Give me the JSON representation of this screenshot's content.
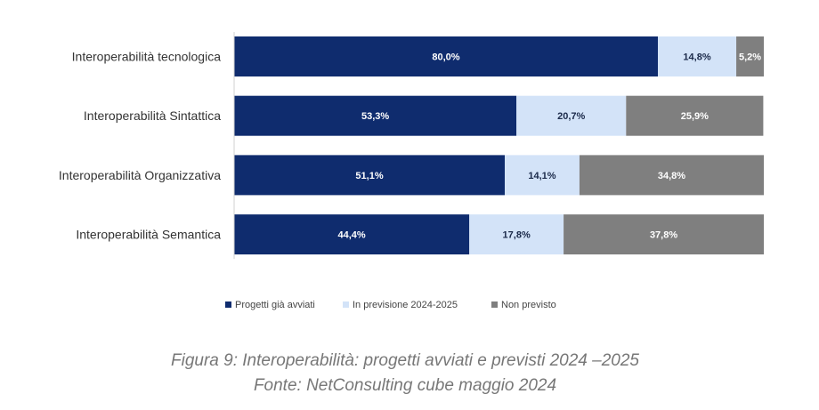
{
  "chart_data": {
    "type": "bar",
    "orientation": "horizontal",
    "stacked": true,
    "categories": [
      "Interoperabilità tecnologica",
      "Interoperabilità Sintattica",
      "Interoperabilità Organizzativa",
      "Interoperabilità Semantica"
    ],
    "series": [
      {
        "name": "Progetti già avviati",
        "color": "#0f2c6e",
        "label_color": "#ffffff",
        "values": [
          80.0,
          53.3,
          51.1,
          44.4
        ],
        "labels": [
          "80,0%",
          "53,3%",
          "51,1%",
          "44,4%"
        ]
      },
      {
        "name": "In previsione 2024-2025",
        "color": "#d3e3f8",
        "label_color": "#1b2a4a",
        "values": [
          14.8,
          20.7,
          14.1,
          17.8
        ],
        "labels": [
          "14,8%",
          "20,7%",
          "14,1%",
          "17,8%"
        ]
      },
      {
        "name": "Non previsto",
        "color": "#7f7f7f",
        "label_color": "#ffffff",
        "values": [
          5.2,
          25.9,
          34.8,
          37.8
        ],
        "labels": [
          "5,2%",
          "25,9%",
          "34,8%",
          "37,8%"
        ]
      }
    ],
    "xlim": [
      0,
      100
    ],
    "legend_position": "bottom",
    "grid": false
  },
  "caption": {
    "line1": "Figura 9: Interoperabilità: progetti avviati e previsti 2024 –2025",
    "line2": "Fonte: NetConsulting cube maggio 2024"
  }
}
